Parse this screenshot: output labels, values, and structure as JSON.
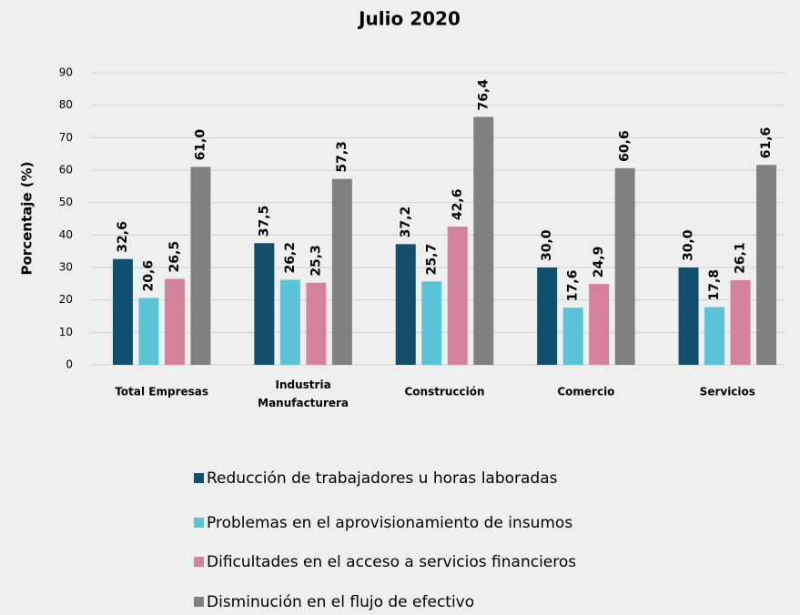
{
  "chart_data": {
    "type": "bar",
    "title": "Julio 2020",
    "y_label": "Porcentaje (%)",
    "categories": [
      "Total Empresas",
      "Industria\nManufacturera",
      "Construcción",
      "Comercio",
      "Servicios"
    ],
    "series": [
      {
        "name": "Reducción de trabajadores u horas laboradas",
        "color": "#12506e",
        "values": [
          32.6,
          37.5,
          37.2,
          30.0,
          30.0
        ],
        "value_labels": [
          "32,6",
          "37,5",
          "37,2",
          "30,0",
          "30,0"
        ]
      },
      {
        "name": "Problemas en el aprovisionamiento de insumos",
        "color": "#5bc3d8",
        "values": [
          20.6,
          26.2,
          25.7,
          17.6,
          17.8
        ],
        "value_labels": [
          "20,6",
          "26,2",
          "25,7",
          "17,6",
          "17,8"
        ]
      },
      {
        "name": "Dificultades en el acceso a servicios financieros",
        "color": "#d4829b",
        "values": [
          26.5,
          25.3,
          42.6,
          24.9,
          26.1
        ],
        "value_labels": [
          "26,5",
          "25,3",
          "42,6",
          "24,9",
          "26,1"
        ]
      },
      {
        "name": "Disminución en el flujo de efectivo",
        "color": "#808080",
        "values": [
          61.0,
          57.3,
          76.4,
          60.6,
          61.6
        ],
        "value_labels": [
          "61,0",
          "57,3",
          "76,4",
          "60,6",
          "61,6"
        ]
      }
    ],
    "ylim": [
      0,
      90
    ],
    "yticks": [
      0,
      10,
      20,
      30,
      40,
      50,
      60,
      70,
      80,
      90
    ],
    "grid": true
  }
}
